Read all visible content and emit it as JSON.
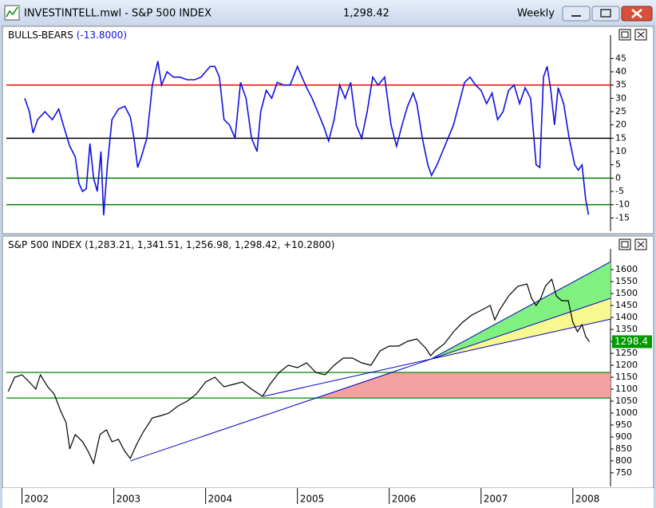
{
  "window": {
    "title": "INVESTINTELL.mwl - S&P 500 INDEX",
    "price": "1,298.42",
    "period": "Weekly"
  },
  "chart_data": [
    {
      "type": "line",
      "title": "BULLS-BEARS",
      "value_label": "(-13.8000)",
      "color": "#1010e0",
      "xlim": [
        2001.83,
        2008.41
      ],
      "ylim": [
        -20,
        52
      ],
      "yticks": [
        45,
        40,
        35,
        30,
        25,
        20,
        15,
        10,
        5,
        0,
        -5,
        -10,
        -15
      ],
      "levels": [
        {
          "value": 35,
          "color": "#ff0000"
        },
        {
          "value": 15,
          "color": "#000000"
        },
        {
          "value": 0,
          "color": "#008000"
        },
        {
          "value": -10,
          "color": "#008000"
        }
      ],
      "x": [
        2002.03,
        2002.08,
        2002.12,
        2002.17,
        2002.25,
        2002.33,
        2002.4,
        2002.45,
        2002.52,
        2002.58,
        2002.62,
        2002.66,
        2002.7,
        2002.74,
        2002.78,
        2002.82,
        2002.86,
        2002.89,
        2002.93,
        2002.98,
        2003.05,
        2003.12,
        2003.18,
        2003.22,
        2003.26,
        2003.3,
        2003.36,
        2003.42,
        2003.48,
        2003.52,
        2003.58,
        2003.65,
        2003.72,
        2003.8,
        2003.88,
        2003.95,
        2004.0,
        2004.05,
        2004.1,
        2004.15,
        2004.2,
        2004.26,
        2004.32,
        2004.38,
        2004.44,
        2004.5,
        2004.56,
        2004.6,
        2004.66,
        2004.72,
        2004.78,
        2004.85,
        2004.92,
        2005.0,
        2005.05,
        2005.1,
        2005.16,
        2005.22,
        2005.28,
        2005.34,
        2005.4,
        2005.46,
        2005.52,
        2005.58,
        2005.64,
        2005.7,
        2005.76,
        2005.82,
        2005.88,
        2005.95,
        2006.02,
        2006.08,
        2006.14,
        2006.2,
        2006.26,
        2006.3,
        2006.36,
        2006.42,
        2006.46,
        2006.52,
        2006.58,
        2006.64,
        2006.7,
        2006.76,
        2006.82,
        2006.88,
        2006.94,
        2007.0,
        2007.06,
        2007.12,
        2007.18,
        2007.24,
        2007.3,
        2007.36,
        2007.42,
        2007.48,
        2007.54,
        2007.6,
        2007.64,
        2007.68,
        2007.72,
        2007.76,
        2007.8,
        2007.84,
        2007.9,
        2007.96,
        2008.02,
        2008.06,
        2008.1,
        2008.14,
        2008.17
      ],
      "values": [
        30,
        25,
        17,
        22,
        25,
        22,
        26,
        20,
        12,
        8,
        -2,
        -5,
        -4,
        13,
        0,
        -5,
        10,
        -14,
        5,
        22,
        26,
        27,
        23,
        15,
        4,
        8,
        15,
        35,
        44,
        35,
        40,
        38,
        38,
        37,
        37,
        38,
        40,
        42,
        42,
        38,
        22,
        20,
        15,
        36,
        30,
        15,
        10,
        25,
        33,
        30,
        36,
        35,
        35,
        42,
        38,
        34,
        30,
        25,
        20,
        14,
        22,
        35,
        30,
        36,
        20,
        15,
        25,
        38,
        35,
        38,
        20,
        12,
        20,
        27,
        32,
        28,
        15,
        5,
        1,
        5,
        10,
        15,
        20,
        28,
        36,
        38,
        35,
        33,
        28,
        32,
        22,
        25,
        33,
        35,
        28,
        34,
        30,
        5,
        4,
        38,
        42,
        33,
        20,
        34,
        28,
        15,
        5,
        3,
        5,
        -8,
        -13.8
      ]
    },
    {
      "type": "line",
      "title": "S&P 500 INDEX",
      "value_label": "(1,283.21, 1,341.51, 1,256.98, 1,298.42, +10.2800)",
      "color": "#000000",
      "last_label": "1298.4",
      "xlim": [
        2001.83,
        2008.41
      ],
      "ylim": [
        693,
        1667
      ],
      "yticks": [
        1600,
        1550,
        1500,
        1450,
        1400,
        1350,
        1300,
        1250,
        1200,
        1150,
        1100,
        1050,
        1000,
        950,
        900,
        850,
        800,
        750
      ],
      "xticks": [
        2002,
        2003,
        2004,
        2005,
        2006,
        2007,
        2008
      ],
      "levels": [
        {
          "value": 1170,
          "color": "#2a9a2a"
        },
        {
          "value": 1063,
          "color": "#2a9a2a"
        }
      ],
      "zones": [
        {
          "color": "#f4a0a0",
          "x": [
            2005.2,
            2006.03,
            2008.41,
            2008.41
          ],
          "y": [
            1063,
            1170,
            1170,
            1063
          ]
        },
        {
          "color": "#80f080",
          "x": [
            2006.46,
            2008.41,
            2008.41
          ],
          "y": [
            1227,
            1633,
            1480
          ]
        },
        {
          "color": "#f8f890",
          "x": [
            2006.46,
            2008.41,
            2008.41
          ],
          "y": [
            1227,
            1480,
            1393
          ]
        }
      ],
      "lines": [
        {
          "color": "#0000c0",
          "x": [
            2003.18,
            2008.41
          ],
          "y": [
            800,
            1480
          ]
        },
        {
          "color": "#0000c0",
          "x": [
            2006.46,
            2008.41
          ],
          "y": [
            1227,
            1633
          ]
        },
        {
          "color": "#0000c0",
          "x": [
            2004.63,
            2008.41
          ],
          "y": [
            1070,
            1393
          ]
        }
      ],
      "x": [
        2001.85,
        2001.92,
        2002.0,
        2002.08,
        2002.15,
        2002.2,
        2002.28,
        2002.35,
        2002.42,
        2002.48,
        2002.52,
        2002.58,
        2002.66,
        2002.72,
        2002.78,
        2002.85,
        2002.92,
        2002.98,
        2003.05,
        2003.12,
        2003.18,
        2003.25,
        2003.32,
        2003.42,
        2003.52,
        2003.6,
        2003.7,
        2003.8,
        2003.9,
        2004.0,
        2004.1,
        2004.2,
        2004.3,
        2004.4,
        2004.5,
        2004.58,
        2004.62,
        2004.7,
        2004.8,
        2004.9,
        2005.0,
        2005.1,
        2005.2,
        2005.3,
        2005.4,
        2005.5,
        2005.6,
        2005.7,
        2005.8,
        2005.9,
        2006.0,
        2006.1,
        2006.2,
        2006.3,
        2006.4,
        2006.45,
        2006.5,
        2006.6,
        2006.7,
        2006.8,
        2006.9,
        2007.0,
        2007.1,
        2007.15,
        2007.2,
        2007.3,
        2007.4,
        2007.5,
        2007.55,
        2007.6,
        2007.65,
        2007.7,
        2007.77,
        2007.82,
        2007.88,
        2007.95,
        2008.0,
        2008.05,
        2008.1,
        2008.14,
        2008.18
      ],
      "values": [
        1090,
        1150,
        1160,
        1130,
        1100,
        1160,
        1110,
        1080,
        1010,
        960,
        850,
        910,
        880,
        840,
        790,
        910,
        930,
        880,
        890,
        840,
        810,
        870,
        920,
        980,
        990,
        1000,
        1030,
        1050,
        1080,
        1130,
        1150,
        1110,
        1120,
        1130,
        1100,
        1080,
        1070,
        1120,
        1170,
        1200,
        1190,
        1210,
        1170,
        1160,
        1200,
        1230,
        1230,
        1210,
        1200,
        1260,
        1280,
        1280,
        1300,
        1310,
        1270,
        1240,
        1260,
        1290,
        1340,
        1380,
        1410,
        1430,
        1450,
        1390,
        1430,
        1490,
        1530,
        1540,
        1480,
        1450,
        1480,
        1530,
        1560,
        1490,
        1470,
        1470,
        1380,
        1340,
        1370,
        1320,
        1298.42
      ]
    }
  ]
}
